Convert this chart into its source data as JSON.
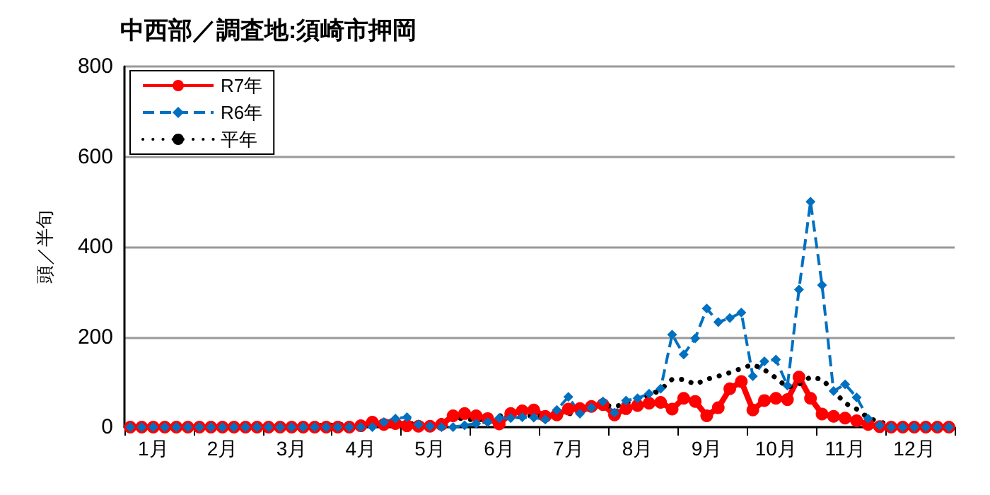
{
  "chart_data": {
    "type": "line",
    "title": "中西部／調査地:須崎市押岡",
    "ylabel": "頭／半旬",
    "categories": [
      null,
      null,
      "1月",
      null,
      null,
      null,
      null,
      null,
      "2月",
      null,
      null,
      null,
      null,
      null,
      "3月",
      null,
      null,
      null,
      null,
      null,
      "4月",
      null,
      null,
      null,
      null,
      null,
      "5月",
      null,
      null,
      null,
      null,
      null,
      "6月",
      null,
      null,
      null,
      null,
      null,
      "7月",
      null,
      null,
      null,
      null,
      null,
      "8月",
      null,
      null,
      null,
      null,
      null,
      "9月",
      null,
      null,
      null,
      null,
      null,
      "10月",
      null,
      null,
      null,
      null,
      null,
      "11月",
      null,
      null,
      null,
      null,
      null,
      "12月",
      null,
      null,
      null
    ],
    "ylim": [
      0,
      800
    ],
    "yticks": [
      0,
      200,
      400,
      600,
      800
    ],
    "grid": "y",
    "legend": "top left",
    "series": [
      {
        "name": "R7年",
        "color": "#ff0000",
        "marker": "circle",
        "line_style": "solid",
        "values": [
          0,
          0,
          0,
          0,
          0,
          0,
          0,
          0,
          0,
          0,
          0,
          0,
          0,
          0,
          0,
          0,
          0,
          0,
          0,
          0,
          3,
          11,
          6,
          8,
          3,
          2,
          2,
          6,
          25,
          30,
          25,
          19,
          7,
          30,
          36,
          38,
          24,
          27,
          40,
          41,
          46,
          50,
          27,
          41,
          48,
          53,
          55,
          40,
          64,
          57,
          25,
          43,
          85,
          101,
          38,
          59,
          64,
          61,
          111,
          64,
          29,
          24,
          20,
          14,
          6,
          1,
          0,
          0,
          0,
          0,
          0,
          0
        ]
      },
      {
        "name": "R6年",
        "color": "#0070c0",
        "marker": "diamond",
        "line_style": "dashed",
        "values": [
          0,
          0,
          0,
          0,
          0,
          0,
          0,
          0,
          0,
          0,
          0,
          0,
          0,
          0,
          0,
          0,
          0,
          0,
          0,
          0,
          0,
          0,
          11,
          19,
          22,
          6,
          2,
          0,
          0,
          4,
          8,
          11,
          20,
          20,
          22,
          21,
          17,
          38,
          67,
          30,
          43,
          57,
          32,
          59,
          64,
          74,
          85,
          205,
          161,
          197,
          263,
          233,
          242,
          254,
          113,
          146,
          150,
          92,
          305,
          500,
          315,
          80,
          95,
          66,
          19,
          4,
          0,
          0,
          0,
          0,
          0,
          0
        ]
      },
      {
        "name": "平年",
        "color": "#000000",
        "marker": "none",
        "line_style": "dotted",
        "values": [
          0,
          0,
          0,
          0,
          0,
          0,
          0,
          0,
          0,
          0,
          0,
          0,
          0,
          0,
          0,
          2,
          3,
          4,
          5,
          6,
          6,
          7,
          8,
          8,
          8,
          8,
          8,
          15,
          22,
          18,
          16,
          18,
          25,
          25,
          22,
          27,
          24,
          27,
          29,
          35,
          40,
          50,
          45,
          53,
          64,
          69,
          83,
          106,
          106,
          95,
          106,
          113,
          121,
          130,
          139,
          127,
          109,
          88,
          95,
          111,
          106,
          80,
          53,
          40,
          20,
          12,
          4,
          1,
          0,
          0,
          0,
          0
        ]
      }
    ]
  }
}
